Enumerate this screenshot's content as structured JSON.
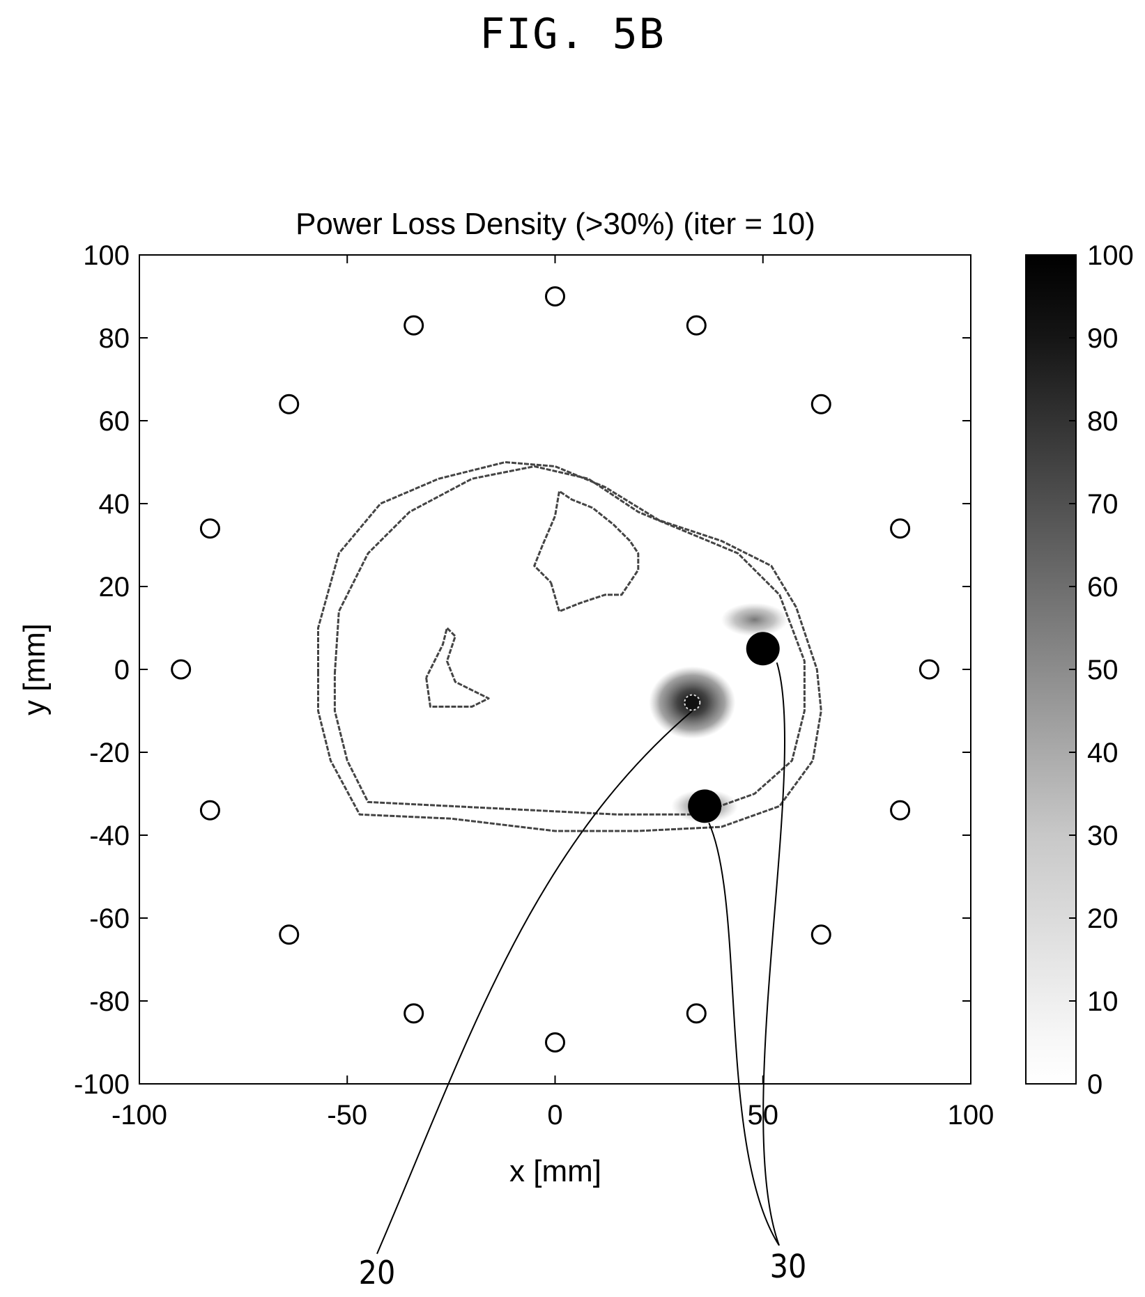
{
  "figure_label": "FIG. 5B",
  "chart_data": {
    "type": "heatmap",
    "title": "Power Loss Density (>30%) (iter = 10)",
    "xlabel": "x [mm]",
    "ylabel": "y [mm]",
    "xlim": [
      -100,
      100
    ],
    "ylim": [
      -100,
      100
    ],
    "xticks": [
      -100,
      -50,
      0,
      50,
      100
    ],
    "yticks": [
      100,
      80,
      60,
      40,
      20,
      0,
      -20,
      -40,
      -60,
      -80,
      -100
    ],
    "colorbar": {
      "range": [
        0,
        100
      ],
      "ticks": [
        100,
        90,
        80,
        70,
        60,
        50,
        40,
        30,
        20,
        10,
        0
      ],
      "colormap": "white-to-black grayscale"
    },
    "grid": false,
    "antenna_ring": [
      [
        0,
        90
      ],
      [
        34,
        83
      ],
      [
        64,
        64
      ],
      [
        83,
        34
      ],
      [
        90,
        0
      ],
      [
        83,
        -34
      ],
      [
        64,
        -64
      ],
      [
        34,
        -83
      ],
      [
        0,
        -90
      ],
      [
        -34,
        -83
      ],
      [
        -64,
        -64
      ],
      [
        -83,
        -34
      ],
      [
        -90,
        0
      ],
      [
        -83,
        34
      ],
      [
        -64,
        64
      ],
      [
        -34,
        83
      ]
    ],
    "target_point": [
      33,
      -8
    ],
    "markers": [
      [
        50,
        5
      ],
      [
        36,
        -33
      ]
    ],
    "hotspots": [
      {
        "x": 33,
        "y": -8,
        "intensity": 85
      },
      {
        "x": 48,
        "y": 12,
        "intensity": 45
      },
      {
        "x": 36,
        "y": -33,
        "intensity": 40
      }
    ],
    "outer_contour": [
      [
        -57,
        -1
      ],
      [
        -57,
        10
      ],
      [
        -52,
        28
      ],
      [
        -42,
        40
      ],
      [
        -28,
        46
      ],
      [
        -12,
        50
      ],
      [
        0,
        49
      ],
      [
        12,
        44
      ],
      [
        25,
        36
      ],
      [
        40,
        31
      ],
      [
        52,
        25
      ],
      [
        58,
        15
      ],
      [
        63,
        0
      ],
      [
        64,
        -10
      ],
      [
        62,
        -22
      ],
      [
        54,
        -33
      ],
      [
        40,
        -38
      ],
      [
        20,
        -39
      ],
      [
        0,
        -39
      ],
      [
        -25,
        -36
      ],
      [
        -47,
        -35
      ],
      [
        -54,
        -22
      ],
      [
        -57,
        -10
      ],
      [
        -57,
        -1
      ]
    ],
    "inner_contour": [
      [
        -53,
        -1
      ],
      [
        -52,
        14
      ],
      [
        -45,
        28
      ],
      [
        -35,
        38
      ],
      [
        -20,
        46
      ],
      [
        -5,
        49
      ],
      [
        8,
        46
      ],
      [
        20,
        38
      ],
      [
        32,
        33
      ],
      [
        44,
        28
      ],
      [
        54,
        18
      ],
      [
        60,
        2
      ],
      [
        60,
        -10
      ],
      [
        57,
        -22
      ],
      [
        48,
        -30
      ],
      [
        34,
        -35
      ],
      [
        15,
        -35
      ],
      [
        -5,
        -34
      ],
      [
        -25,
        -33
      ],
      [
        -45,
        -32
      ],
      [
        -50,
        -22
      ],
      [
        -53,
        -10
      ],
      [
        -53,
        -1
      ]
    ],
    "structure_contour": [
      [
        -1,
        21
      ],
      [
        1,
        14
      ],
      [
        6,
        16
      ],
      [
        12,
        18
      ],
      [
        16,
        18
      ],
      [
        18,
        21
      ],
      [
        20,
        24
      ],
      [
        20,
        28
      ],
      [
        18,
        31
      ],
      [
        14,
        35
      ],
      [
        9,
        39
      ],
      [
        4,
        41
      ],
      [
        1,
        43
      ],
      [
        0,
        37
      ],
      [
        -3,
        30
      ],
      [
        -5,
        25
      ],
      [
        -1,
        21
      ]
    ],
    "small_loop_contour": [
      [
        -31,
        -2
      ],
      [
        -30,
        -9
      ],
      [
        -25,
        -9
      ],
      [
        -20,
        -9
      ],
      [
        -16,
        -7
      ],
      [
        -20,
        -5
      ],
      [
        -24,
        -3
      ],
      [
        -26,
        2
      ],
      [
        -24,
        8
      ],
      [
        -26,
        10
      ],
      [
        -27,
        6
      ],
      [
        -29,
        2
      ],
      [
        -31,
        -2
      ]
    ],
    "annotation_labels": [
      "20",
      "30"
    ]
  }
}
